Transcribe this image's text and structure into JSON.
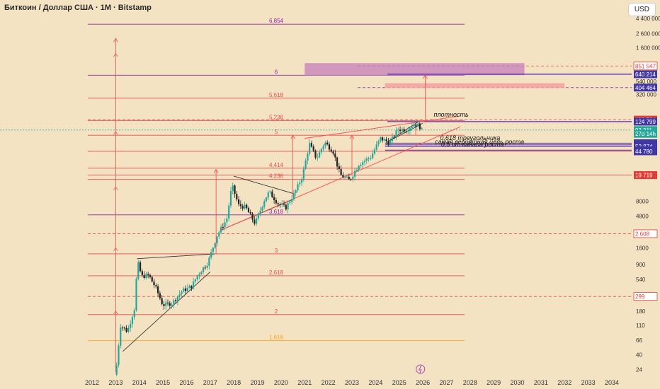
{
  "header": {
    "title": "Биткоин / Доллар США · 1M · Bitstamp",
    "currency_button": "USD"
  },
  "colors": {
    "background": "#f4e3c3",
    "fib_line": "#e84a4a",
    "fib_purple": "#8e24aa",
    "trend_red": "#ff5252",
    "candle_up": "#26a69a",
    "candle_down": "#222222",
    "zone_pink": "#c77dba",
    "zone_salmon": "#f29c9c",
    "fib_orange": "#f5a623"
  },
  "chart_data": {
    "type": "candlestick",
    "x_axis": {
      "ticks": [
        "2012",
        "2013",
        "2014",
        "2015",
        "2016",
        "2017",
        "2018",
        "2019",
        "2020",
        "2021",
        "2022",
        "2023",
        "2024",
        "2025",
        "2026",
        "2027",
        "2028",
        "2029",
        "2030",
        "2031",
        "2032",
        "2033",
        "2034"
      ]
    },
    "y_axis": {
      "scale": "log",
      "ticks": [
        "4 400 000",
        "2 600 000",
        "1 600 000",
        "540 000",
        "320 000",
        "8000",
        "4800",
        "1600",
        "900",
        "540",
        "180",
        "110",
        "66",
        "40",
        "24"
      ]
    },
    "price_labels": [
      {
        "text": "851 547",
        "value": 851547,
        "style": "red-outline"
      },
      {
        "text": "640 214",
        "value": 640214,
        "style": "purple"
      },
      {
        "text": "404 464",
        "value": 404464,
        "style": "purple"
      },
      {
        "text": "133 784",
        "value": 133784,
        "style": "red"
      },
      {
        "text": "124 799",
        "value": 124799,
        "style": "purple"
      },
      {
        "text": "93 311",
        "value": 93311,
        "style": "green"
      },
      {
        "text": "27d 14h",
        "value": 82000,
        "style": "green"
      },
      {
        "text": "59 254",
        "value": 59254,
        "style": "purple"
      },
      {
        "text": "55 972",
        "value": 55972,
        "style": "purple"
      },
      {
        "text": "52 874",
        "value": 52874,
        "style": "purple"
      },
      {
        "text": "46 579",
        "value": 46579,
        "style": "purple"
      },
      {
        "text": "44 780",
        "value": 44780,
        "style": "purple"
      },
      {
        "text": "19 719",
        "value": 19719,
        "style": "red"
      },
      {
        "text": "2 608",
        "value": 2608,
        "style": "red-outline"
      },
      {
        "text": "299",
        "value": 299,
        "style": "red-outline"
      }
    ],
    "fib_levels": [
      {
        "label": "6,854",
        "value": 3600000,
        "color": "#8e24aa"
      },
      {
        "label": "6",
        "value": 620000,
        "color": "#8e24aa"
      },
      {
        "label": "5,618",
        "value": 280000,
        "color": "#e84a4a"
      },
      {
        "label": "5,236",
        "value": 130000,
        "color": "#e84a4a"
      },
      {
        "label": "5",
        "value": 78000,
        "color": "#e84a4a"
      },
      {
        "label": "4,414",
        "value": 25000,
        "color": "#e84a4a"
      },
      {
        "label": "4,236",
        "value": 17000,
        "color": "#e84a4a"
      },
      {
        "label": "3,618",
        "value": 5000,
        "color": "#8e24aa"
      },
      {
        "label": "3",
        "value": 1300,
        "color": "#e84a4a"
      },
      {
        "label": "2,618",
        "value": 610,
        "color": "#e84a4a"
      },
      {
        "label": "2",
        "value": 160,
        "color": "#e84a4a"
      },
      {
        "label": "1,618",
        "value": 65,
        "color": "#f5a623"
      }
    ],
    "annotations": [
      {
        "text": "плотность",
        "x": 2027.2,
        "value": 148000
      },
      {
        "text": "0,618 треугольника",
        "x": 2028,
        "value": 66000
      },
      {
        "text": "самая вероятная цель роста",
        "x": 2028.4,
        "value": 58000
      },
      {
        "text": "0,5 от канала роста",
        "x": 2028.1,
        "value": 53000
      }
    ],
    "series_monthly_close": [
      {
        "t": 2013.0,
        "c": 20
      },
      {
        "t": 2013.2,
        "c": 110
      },
      {
        "t": 2013.5,
        "c": 90
      },
      {
        "t": 2013.8,
        "c": 200
      },
      {
        "t": 2013.92,
        "c": 1000
      },
      {
        "t": 2014.1,
        "c": 600
      },
      {
        "t": 2014.4,
        "c": 620
      },
      {
        "t": 2014.7,
        "c": 400
      },
      {
        "t": 2015.0,
        "c": 220
      },
      {
        "t": 2015.4,
        "c": 240
      },
      {
        "t": 2015.8,
        "c": 360
      },
      {
        "t": 2016.2,
        "c": 420
      },
      {
        "t": 2016.5,
        "c": 650
      },
      {
        "t": 2016.9,
        "c": 960
      },
      {
        "t": 2017.3,
        "c": 2500
      },
      {
        "t": 2017.7,
        "c": 4300
      },
      {
        "t": 2017.92,
        "c": 14000
      },
      {
        "t": 2018.2,
        "c": 7000
      },
      {
        "t": 2018.5,
        "c": 6500
      },
      {
        "t": 2018.9,
        "c": 3700
      },
      {
        "t": 2019.3,
        "c": 8500
      },
      {
        "t": 2019.5,
        "c": 11000
      },
      {
        "t": 2019.9,
        "c": 7200
      },
      {
        "t": 2020.2,
        "c": 6400
      },
      {
        "t": 2020.6,
        "c": 11000
      },
      {
        "t": 2020.9,
        "c": 19000
      },
      {
        "t": 2021.2,
        "c": 58000
      },
      {
        "t": 2021.5,
        "c": 35000
      },
      {
        "t": 2021.85,
        "c": 61000
      },
      {
        "t": 2022.2,
        "c": 45000
      },
      {
        "t": 2022.5,
        "c": 20000
      },
      {
        "t": 2022.9,
        "c": 16500
      },
      {
        "t": 2023.3,
        "c": 29000
      },
      {
        "t": 2023.8,
        "c": 37000
      },
      {
        "t": 2024.2,
        "c": 70000
      },
      {
        "t": 2024.6,
        "c": 60000
      },
      {
        "t": 2024.95,
        "c": 96000
      },
      {
        "t": 2025.3,
        "c": 94000
      },
      {
        "t": 2025.6,
        "c": 115000
      },
      {
        "t": 2025.85,
        "c": 109000
      },
      {
        "t": 2025.95,
        "c": 93311
      }
    ]
  }
}
